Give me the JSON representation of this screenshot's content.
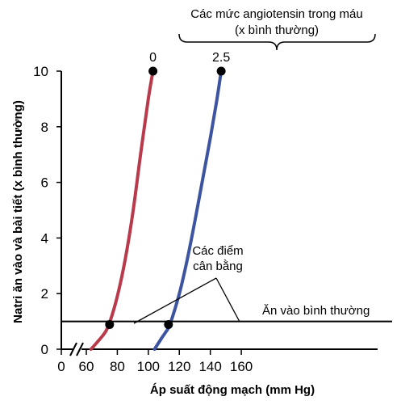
{
  "chart_data": {
    "type": "line",
    "xlabel": "Áp suất động mạch (mm Hg)",
    "ylabel": "Natri ăn vào và bài tiết (x bình thường)",
    "xlim": [
      0,
      160
    ],
    "ylim": [
      0,
      10
    ],
    "x_axis_break": true,
    "x_ticks": [
      0,
      60,
      80,
      100,
      120,
      140,
      160
    ],
    "y_ticks": [
      0,
      2,
      4,
      6,
      8,
      10
    ],
    "grid": false,
    "header_line1": "Các mức angiotensin trong máu",
    "header_line2": "(x bình thường)",
    "series": [
      {
        "name": "0",
        "color": "#b83a4b",
        "x": [
          63,
          67,
          72,
          75,
          80,
          85,
          90,
          95,
          100,
          103
        ],
        "y": [
          0,
          0.25,
          0.6,
          0.95,
          1.9,
          3.2,
          4.9,
          7.0,
          9.0,
          10.0
        ]
      },
      {
        "name": "2.5",
        "color": "#3d54a0",
        "x": [
          104,
          108,
          111,
          114,
          120,
          125,
          130,
          135,
          140,
          144,
          147
        ],
        "y": [
          0,
          0.35,
          0.6,
          0.9,
          2.0,
          3.2,
          4.6,
          6.1,
          7.6,
          8.9,
          10.0
        ]
      }
    ],
    "reference_line": {
      "y": 1,
      "label": "Ăn vào bình thường"
    },
    "equilibrium_points": [
      {
        "x": 75,
        "y": 0.9
      },
      {
        "x": 113,
        "y": 0.9
      }
    ],
    "equilibrium_label_line1": "Các điểm",
    "equilibrium_label_line2": "cân bằng"
  }
}
